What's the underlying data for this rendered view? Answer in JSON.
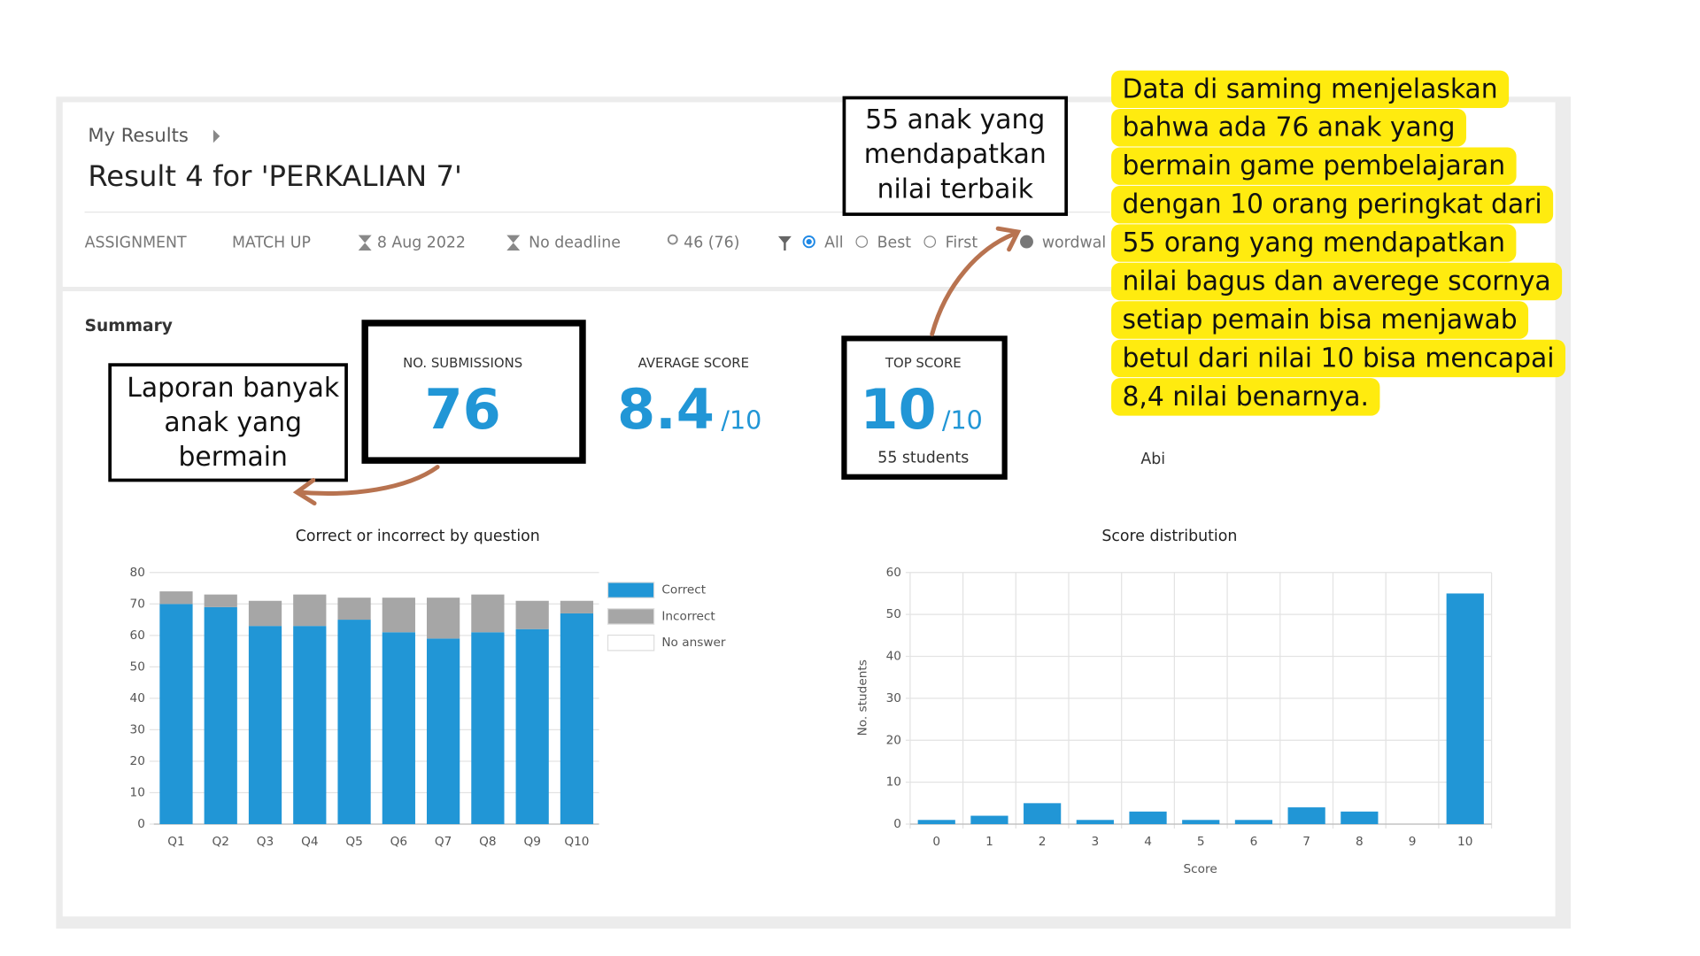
{
  "header": {
    "breadcrumb": "My Results",
    "title": "Result 4 for 'PERKALIAN 7'",
    "meta": [
      "ASSIGNMENT",
      "MATCH UP",
      "8 Aug 2022",
      "No deadline",
      "46 (76)"
    ],
    "filters": [
      "All",
      "Best",
      "First",
      "wordwal"
    ]
  },
  "summary": {
    "title": "Summary",
    "stats": [
      {
        "label": "NO. SUBMISSIONS",
        "value": 76
      },
      {
        "label": "AVERAGE SCORE",
        "value": 8.4,
        "suffix": "/10"
      },
      {
        "label": "TOP SCORE",
        "value": 10,
        "suffix": "/10",
        "note": "55 students"
      },
      {
        "note": "Abi"
      }
    ]
  },
  "annotations": [
    {
      "lines": [
        "Laporan banyak",
        "anak yang",
        "bermain"
      ]
    },
    {
      "lines": [
        "55 anak yang",
        "mendapatkan",
        "nilai terbaik"
      ]
    },
    {
      "lines": [
        "Data di saming menjelaskan",
        "bahwa ada 76 anak yang",
        "bermain game pembelajaran",
        "dengan 10 orang peringkat dari",
        "55 orang yang mendapatkan",
        "nilai bagus dan averege scornya",
        "setiap pemain bisa menjawab",
        "betul dari nilai 10 bisa mencapai",
        "8,4 nilai benarnya."
      ]
    }
  ],
  "chart_data": [
    {
      "type": "stacked_bar",
      "title": "Correct or incorrect by question",
      "categories": [
        "Q1",
        "Q2",
        "Q3",
        "Q4",
        "Q5",
        "Q6",
        "Q7",
        "Q8",
        "Q9",
        "Q10"
      ],
      "series": [
        {
          "name": "Correct",
          "color": "#2196d6",
          "values": [
            70,
            69,
            63,
            63,
            65,
            61,
            59,
            61,
            62,
            67
          ]
        },
        {
          "name": "Incorrect",
          "color": "#a6a6a6",
          "values": [
            4,
            4,
            8,
            10,
            7,
            11,
            13,
            12,
            9,
            4
          ]
        },
        {
          "name": "No answer",
          "color": "#ffffff",
          "values": [
            0,
            0,
            0,
            0,
            0,
            0,
            0,
            0,
            0,
            0
          ]
        }
      ],
      "ylim": [
        0,
        80
      ],
      "yticks": [
        0,
        10,
        20,
        30,
        40,
        50,
        60,
        70,
        80
      ],
      "grid": true
    },
    {
      "type": "bar",
      "title": "Score distribution",
      "categories": [
        "0",
        "1",
        "2",
        "3",
        "4",
        "5",
        "6",
        "7",
        "8",
        "9",
        "10"
      ],
      "values": [
        1,
        2,
        5,
        1,
        3,
        1,
        1,
        4,
        3,
        0,
        55
      ],
      "color": "#2196d6",
      "xlabel": "Score",
      "ylabel": "No. students",
      "ylim": [
        0,
        60
      ],
      "yticks": [
        0,
        10,
        20,
        30,
        40,
        50,
        60
      ],
      "grid": true
    }
  ]
}
